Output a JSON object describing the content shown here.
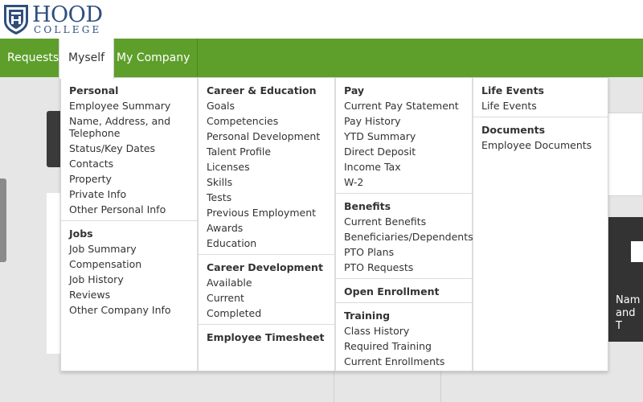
{
  "logo": {
    "name": "HOOD",
    "sub": "COLLEGE"
  },
  "nav": {
    "requests": "Requests",
    "myself": "Myself",
    "my_company": "My Company"
  },
  "background": {
    "card_text_1": "Nam",
    "card_text_2": "and T"
  },
  "menu": {
    "personal": {
      "title": "Personal",
      "items": [
        "Employee Summary",
        "Name, Address, and Telephone",
        "Status/Key Dates",
        "Contacts",
        "Property",
        "Private Info",
        "Other Personal Info"
      ]
    },
    "jobs": {
      "title": "Jobs",
      "items": [
        "Job Summary",
        "Compensation",
        "Job History",
        "Reviews",
        "Other Company Info"
      ]
    },
    "career_education": {
      "title": "Career & Education",
      "items": [
        "Goals",
        "Competencies",
        "Personal Development",
        "Talent Profile",
        "Licenses",
        "Skills",
        "Tests",
        "Previous Employment",
        "Awards",
        "Education"
      ]
    },
    "career_development": {
      "title": "Career Development",
      "items": [
        "Available",
        "Current",
        "Completed"
      ]
    },
    "employee_timesheet": {
      "title": "Employee Timesheet"
    },
    "pay": {
      "title": "Pay",
      "items": [
        "Current Pay Statement",
        "Pay History",
        "YTD Summary",
        "Direct Deposit",
        "Income Tax",
        "W-2"
      ]
    },
    "benefits": {
      "title": "Benefits",
      "items": [
        "Current Benefits",
        "Beneficiaries/Dependents",
        "PTO Plans",
        "PTO Requests"
      ]
    },
    "open_enrollment": {
      "title": "Open Enrollment"
    },
    "training": {
      "title": "Training",
      "items": [
        "Class History",
        "Required Training",
        "Current Enrollments"
      ]
    },
    "life_events": {
      "title": "Life Events",
      "items": [
        "Life Events"
      ]
    },
    "documents": {
      "title": "Documents",
      "items": [
        "Employee Documents"
      ]
    }
  },
  "colors": {
    "nav_green": "#5e9f2c",
    "logo_blue": "#2e4e7e",
    "page_bg": "#e6e6e6"
  }
}
